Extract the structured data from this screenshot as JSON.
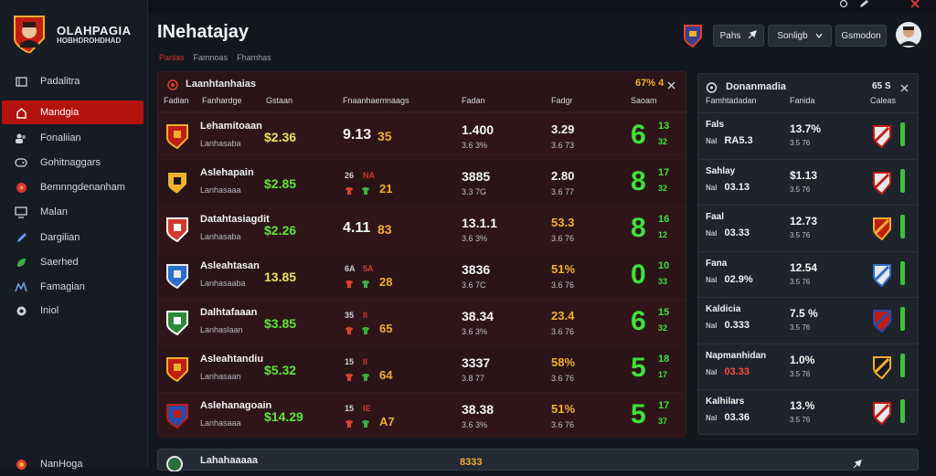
{
  "app": {
    "title": "OLAHPAGIA",
    "subtitle": "HOBHDROHDHAD"
  },
  "sidebar": {
    "items": [
      {
        "label": "Padalitra",
        "icon": "dashboard-icon"
      },
      {
        "label": "Mandgia",
        "icon": "home-icon",
        "active": true
      },
      {
        "label": "Fonaliian",
        "icon": "people-icon"
      },
      {
        "label": "Gohitnaggars",
        "icon": "gamepad-icon"
      },
      {
        "label": "Bemnngdenanham",
        "icon": "ball-icon"
      },
      {
        "label": "Malan",
        "icon": "monitor-icon"
      },
      {
        "label": "Dargilian",
        "icon": "pencil-icon"
      },
      {
        "label": "Saerhed",
        "icon": "leaf-icon"
      },
      {
        "label": "Famagian",
        "icon": "chart-icon"
      },
      {
        "label": "Iniol",
        "icon": "circle-icon"
      }
    ],
    "footer_label": "NanHoga"
  },
  "header": {
    "title": "INehatajay",
    "breadcrumbs": [
      "Panlas",
      "Famnoas",
      "Fhamhas"
    ],
    "buttons": {
      "first": "Pahs",
      "second": "Sonligb",
      "third": "Gsmodon"
    }
  },
  "matches": {
    "title": "Laanhtanhaias",
    "badge": "67% 4",
    "columns": [
      "Fadian",
      "Fanhardge",
      "Gstaan",
      "Fnaanhaemnaags",
      "Fadan",
      "Fadgr",
      "Saoam"
    ],
    "rows": [
      {
        "name": "Lehamitoaan",
        "sub": "Lanhasaba",
        "odd": "$2.36",
        "odd_color": "#e7e35a",
        "s1": "9.13",
        "s2": "35",
        "mini": [],
        "c1": "1.400",
        "c1s": "3.6 3%",
        "c2": "3.29",
        "c2s": "3.6 73",
        "c2y": false,
        "big": "6",
        "b1": "13",
        "b2": "32"
      },
      {
        "name": "Aslehapain",
        "sub": "Lanhasaaa",
        "odd": "$2.85",
        "odd_color": "#5ee63b",
        "s1": "",
        "s2": "",
        "mini": [
          "26",
          "NA",
          "",
          "21"
        ],
        "c1": "3885",
        "c1s": "3.3 7G",
        "c2": "2.80",
        "c2s": "3.6 77",
        "c2y": false,
        "big": "8",
        "b1": "17",
        "b2": "32"
      },
      {
        "name": "Datahtasiagdit",
        "sub": "Lanhasaba",
        "odd": "$2.26",
        "odd_color": "#5ee63b",
        "s1": "4.11",
        "s2": "83",
        "mini": [],
        "c1": "13.1.1",
        "c1s": "3.6 3%",
        "c2": "53.3",
        "c2s": "3.6 76",
        "c2y": true,
        "big": "8",
        "b1": "16",
        "b2": "12"
      },
      {
        "name": "Asleahtasan",
        "sub": "Lanhasaaba",
        "odd": "13.85",
        "odd_color": "#e7e35a",
        "s1": "",
        "s2": "",
        "mini": [
          "6A",
          "5A",
          "",
          "28"
        ],
        "c1": "3836",
        "c1s": "3.6 7C",
        "c2": "51%",
        "c2s": "3.6 76",
        "c2y": true,
        "big": "0",
        "b1": "10",
        "b2": "33"
      },
      {
        "name": "Dalhtafaaan",
        "sub": "Lanhaslaan",
        "odd": "$3.85",
        "odd_color": "#5ee63b",
        "s1": "",
        "s2": "",
        "mini": [
          "35",
          "II",
          "",
          "65"
        ],
        "c1": "38.34",
        "c1s": "3.6 3%",
        "c2": "23.4",
        "c2s": "3.6 76",
        "c2y": true,
        "big": "6",
        "b1": "15",
        "b2": "32"
      },
      {
        "name": "Asleahtandiu",
        "sub": "Lanhasaan",
        "odd": "$5.32",
        "odd_color": "#5ee63b",
        "s1": "",
        "s2": "",
        "mini": [
          "15",
          "II",
          "",
          "64"
        ],
        "c1": "3337",
        "c1s": "3.8 77",
        "c2": "58%",
        "c2s": "3.6 76",
        "c2y": true,
        "big": "5",
        "b1": "18",
        "b2": "17"
      },
      {
        "name": "Aslehanagoain",
        "sub": "Lanhasaaa",
        "odd": "$14.29",
        "odd_color": "#5ee63b",
        "s1": "",
        "s2": "",
        "mini": [
          "15",
          "IE",
          "",
          "A7"
        ],
        "c1": "38.38",
        "c1s": "3.6 3%",
        "c2": "51%",
        "c2s": "3.6 76",
        "c2y": true,
        "big": "5",
        "b1": "17",
        "b2": "37"
      }
    ],
    "next_row": {
      "name": "Lahahaaaaa",
      "odd": "8333"
    }
  },
  "standings": {
    "title": "Donanmadia",
    "badge": "65 S",
    "columns": [
      "Famhtadadan",
      "Fanida",
      "Caleas"
    ],
    "rows": [
      {
        "name": "Fals",
        "key": "Nal",
        "val": "RA5.3",
        "red": false,
        "pct": "13.7%",
        "pcts": "3.5 76"
      },
      {
        "name": "Sahlay",
        "key": "Nal",
        "val": "03.13",
        "red": false,
        "pct": "$1.13",
        "pcts": "3.5 76"
      },
      {
        "name": "Faal",
        "key": "Nal",
        "val": "03.33",
        "red": false,
        "pct": "12.73",
        "pcts": "3.5 76"
      },
      {
        "name": "Fana",
        "key": "Nal",
        "val": "02.9%",
        "red": false,
        "pct": "12.54",
        "pcts": "3.5 76"
      },
      {
        "name": "Kaldicia",
        "key": "Nal",
        "val": "0.333",
        "red": false,
        "pct": "7.5 %",
        "pcts": "3.5 76"
      },
      {
        "name": "Napmanhidan",
        "key": "Nal",
        "val": "03.33",
        "red": true,
        "pct": "1.0%",
        "pcts": "3.5 76"
      },
      {
        "name": "Kalhilars",
        "key": "Nal",
        "val": "03.36",
        "red": false,
        "pct": "13.%",
        "pcts": "3.5 76"
      }
    ]
  },
  "colors": {
    "accent_red": "#b3120f",
    "green": "#3fe23a",
    "orange": "#f0b030",
    "yellow": "#e7e35a"
  }
}
